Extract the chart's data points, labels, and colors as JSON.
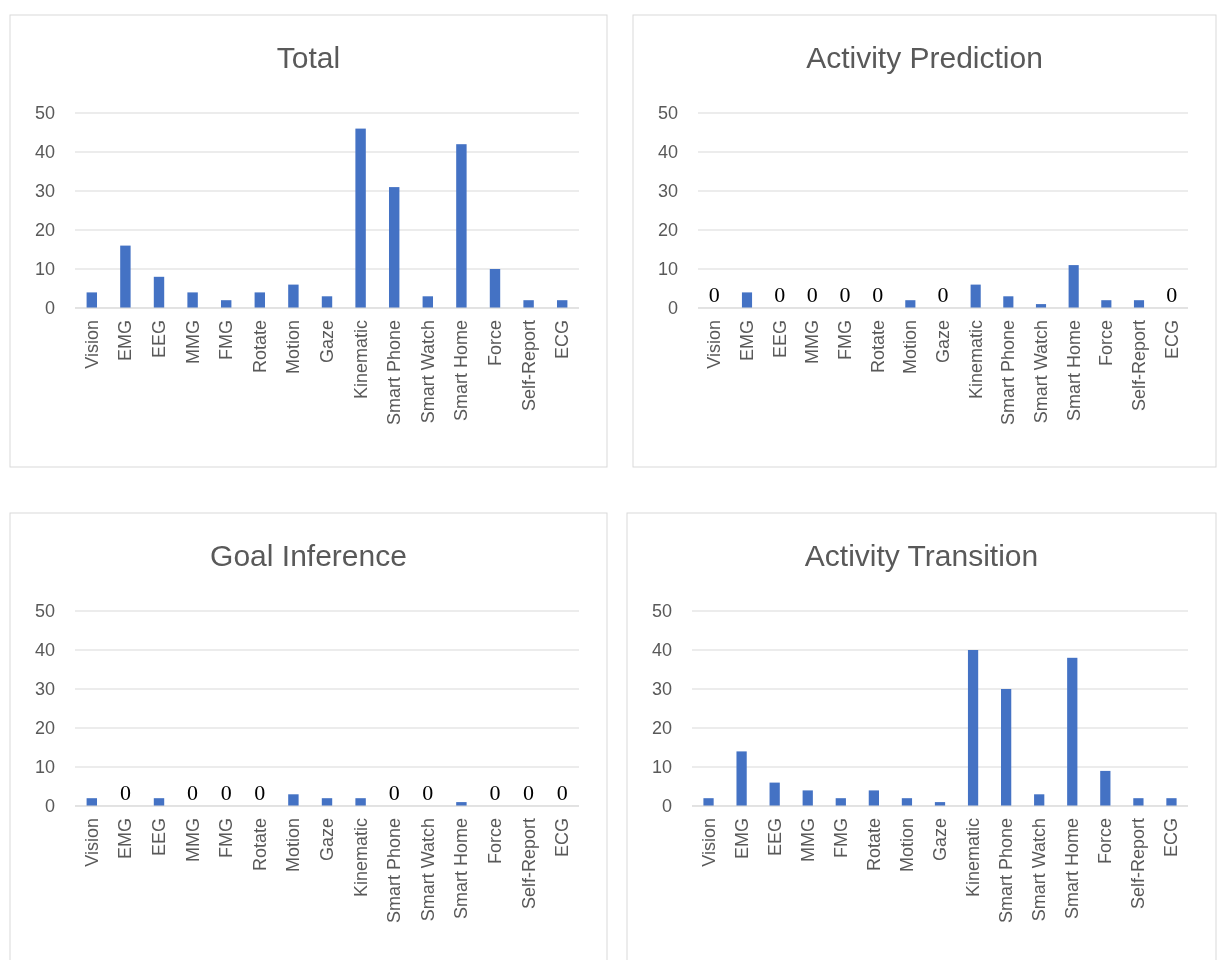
{
  "chart_data": [
    {
      "type": "bar",
      "title": "Total",
      "categories": [
        "Vision",
        "EMG",
        "EEG",
        "MMG",
        "FMG",
        "Rotate",
        "Motion",
        "Gaze",
        "Kinematic",
        "Smart Phone",
        "Smart Watch",
        "Smart Home",
        "Force",
        "Self-Report",
        "ECG"
      ],
      "values": [
        4,
        16,
        8,
        4,
        2,
        4,
        6,
        3,
        46,
        31,
        3,
        42,
        10,
        2,
        2
      ],
      "color": "#4472c4",
      "ylim": [
        0,
        50
      ],
      "yticks": [
        0,
        10,
        20,
        30,
        40,
        50
      ],
      "grid": "y"
    },
    {
      "type": "bar",
      "title": "Activity Prediction",
      "categories": [
        "Vision",
        "EMG",
        "EEG",
        "MMG",
        "FMG",
        "Rotate",
        "Motion",
        "Gaze",
        "Kinematic",
        "Smart Phone",
        "Smart Watch",
        "Smart Home",
        "Force",
        "Self-Report",
        "ECG"
      ],
      "values": [
        0,
        4,
        0,
        0,
        0,
        0,
        2,
        0,
        6,
        3,
        1,
        11,
        2,
        2,
        0
      ],
      "value_labels": [
        "0",
        null,
        "0",
        "0",
        "0",
        "0",
        null,
        "0",
        null,
        null,
        null,
        null,
        null,
        null,
        "0"
      ],
      "color": "#4472c4",
      "ylim": [
        0,
        50
      ],
      "yticks": [
        0,
        10,
        20,
        30,
        40,
        50
      ],
      "grid": "y"
    },
    {
      "type": "bar",
      "title": "Goal Inference",
      "categories": [
        "Vision",
        "EMG",
        "EEG",
        "MMG",
        "FMG",
        "Rotate",
        "Motion",
        "Gaze",
        "Kinematic",
        "Smart Phone",
        "Smart Watch",
        "Smart Home",
        "Force",
        "Self-Report",
        "ECG"
      ],
      "values": [
        2,
        0,
        2,
        0,
        0,
        0,
        3,
        2,
        2,
        0,
        0,
        1,
        0,
        0,
        0
      ],
      "value_labels": [
        null,
        "0",
        null,
        "0",
        "0",
        "0",
        null,
        null,
        null,
        "0",
        "0",
        null,
        "0",
        "0",
        "0"
      ],
      "color": "#4472c4",
      "ylim": [
        0,
        50
      ],
      "yticks": [
        0,
        10,
        20,
        30,
        40,
        50
      ],
      "grid": "y"
    },
    {
      "type": "bar",
      "title": "Activity Transition",
      "categories": [
        "Vision",
        "EMG",
        "EEG",
        "MMG",
        "FMG",
        "Rotate",
        "Motion",
        "Gaze",
        "Kinematic",
        "Smart Phone",
        "Smart Watch",
        "Smart Home",
        "Force",
        "Self-Report",
        "ECG"
      ],
      "values": [
        2,
        14,
        6,
        4,
        2,
        4,
        2,
        1,
        40,
        30,
        3,
        38,
        9,
        2,
        2
      ],
      "color": "#4472c4",
      "ylim": [
        0,
        50
      ],
      "yticks": [
        0,
        10,
        20,
        30,
        40,
        50
      ],
      "grid": "y"
    }
  ]
}
